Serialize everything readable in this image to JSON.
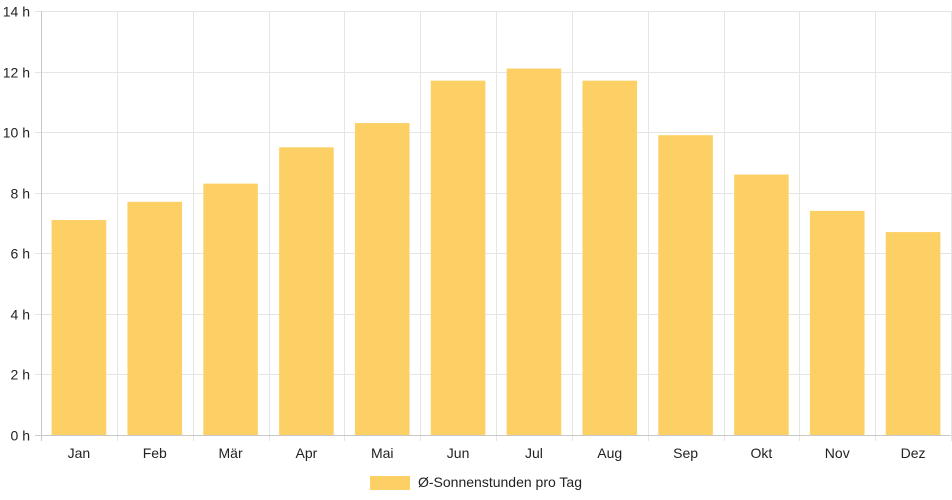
{
  "chart_data": {
    "type": "bar",
    "categories": [
      "Jan",
      "Feb",
      "Mär",
      "Apr",
      "Mai",
      "Jun",
      "Jul",
      "Aug",
      "Sep",
      "Okt",
      "Nov",
      "Dez"
    ],
    "series": [
      {
        "name": "Ø-Sonnenstunden pro Tag",
        "values": [
          7.1,
          7.7,
          8.3,
          9.5,
          10.3,
          11.7,
          12.1,
          11.7,
          9.9,
          8.6,
          7.4,
          6.7
        ]
      }
    ],
    "ylim": [
      0,
      14
    ],
    "y_ticks": [
      "0 h",
      "2 h",
      "4 h",
      "6 h",
      "8 h",
      "10 h",
      "12 h",
      "14 h"
    ],
    "y_tick_values": [
      0,
      2,
      4,
      6,
      8,
      10,
      12,
      14
    ],
    "grid": true,
    "legend_position": "bottom",
    "colors": {
      "bar": "#fdd065",
      "grid": "#e5e5e5",
      "axis": "#c8c8c8",
      "text": "#222222"
    }
  }
}
